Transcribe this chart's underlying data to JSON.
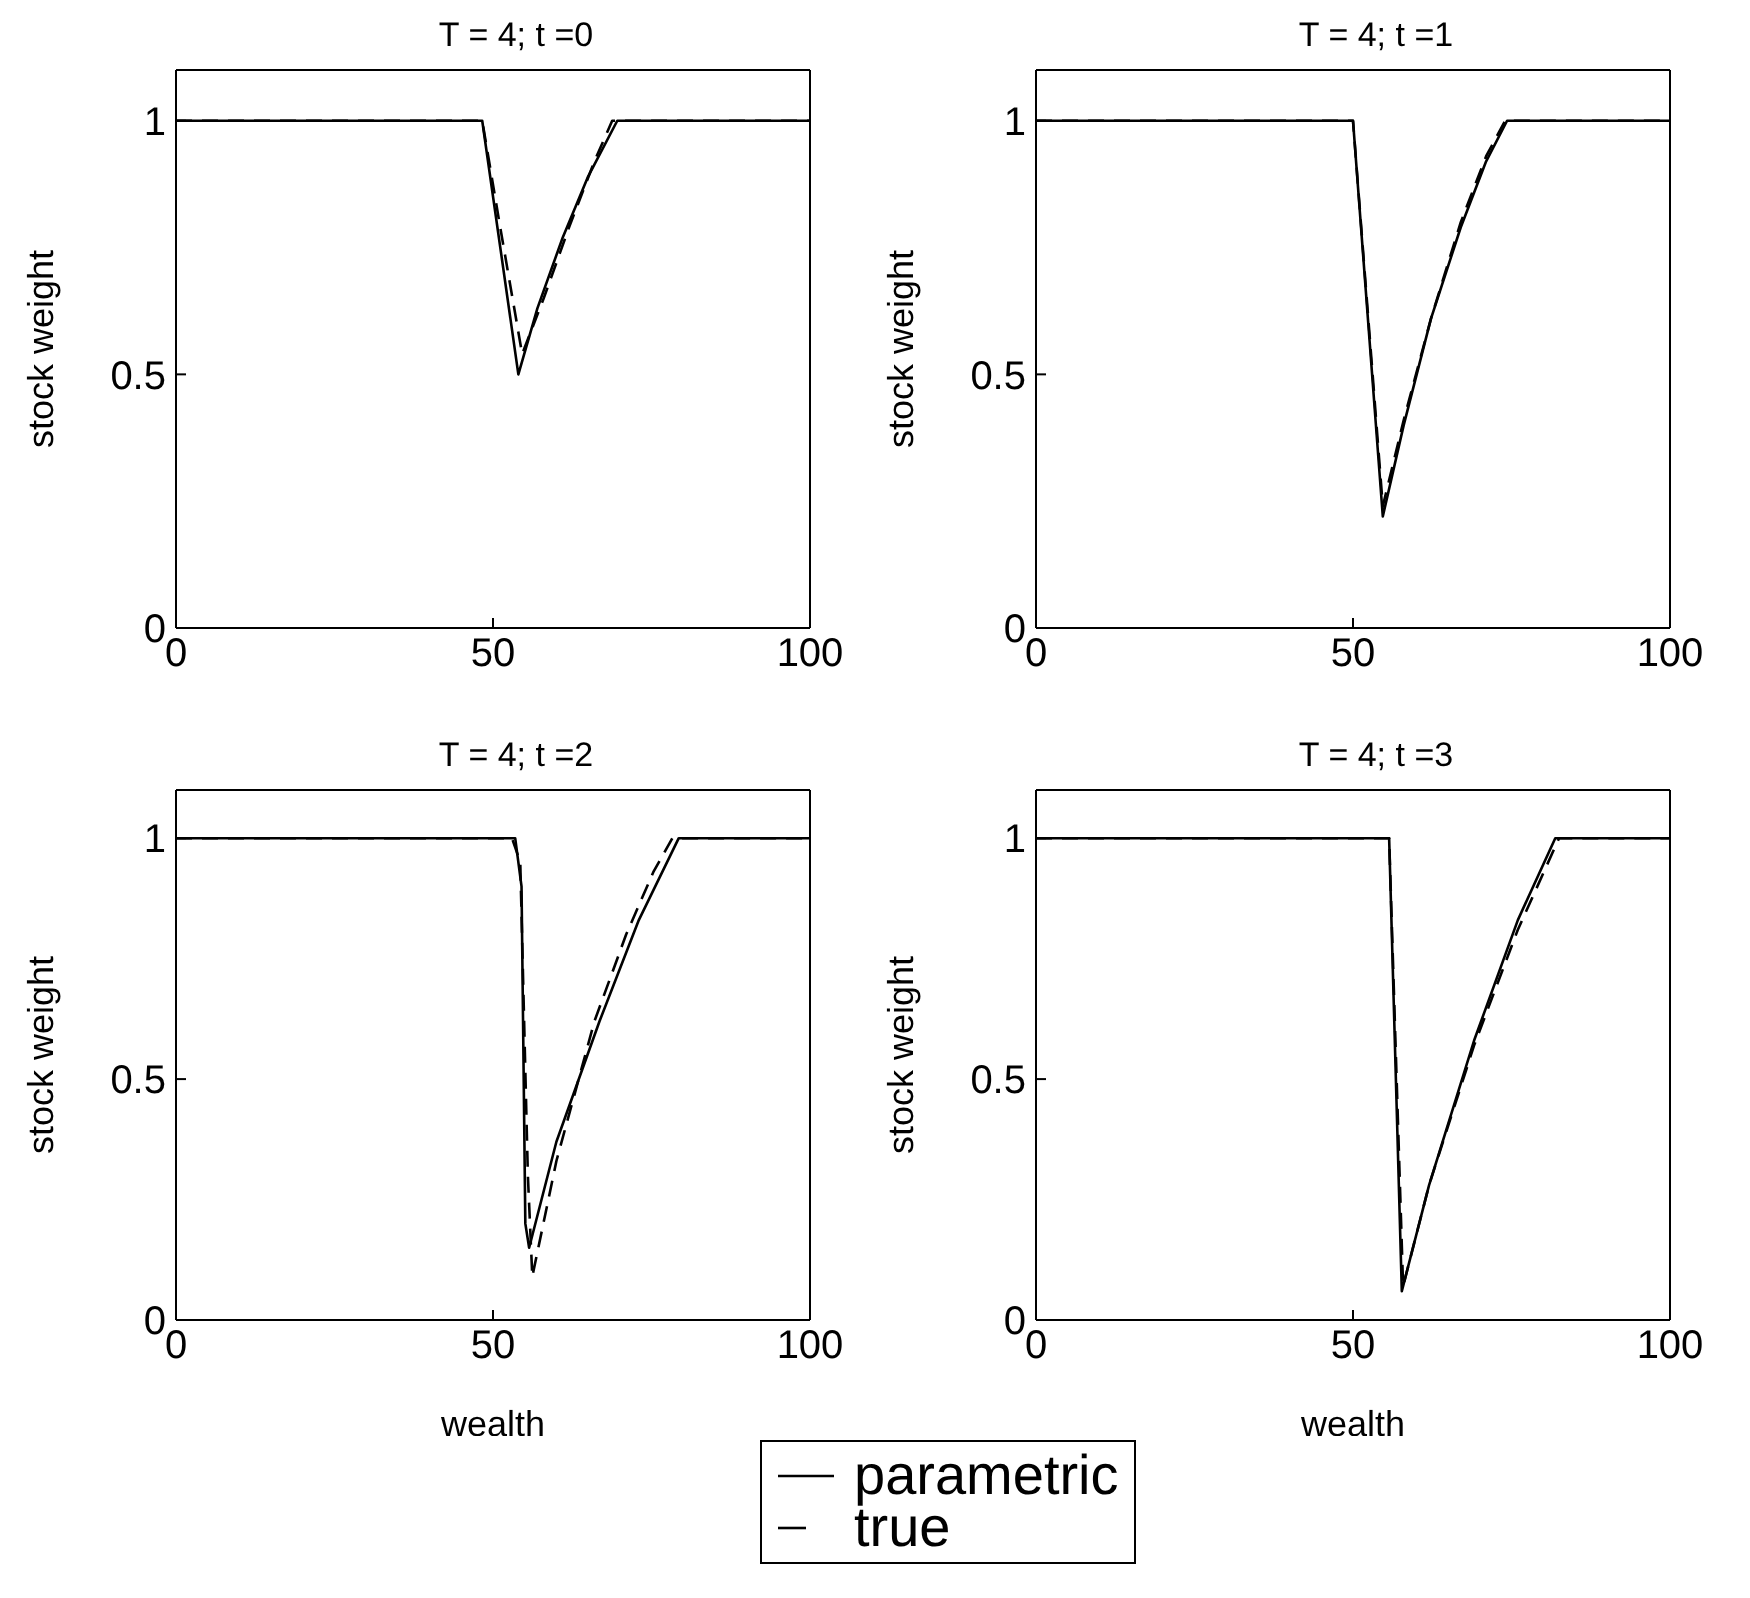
{
  "chart_data": [
    {
      "type": "line",
      "title": "T = 4; t =0",
      "ylabel": "stock weight",
      "legend": "bottom",
      "xlim": [
        0,
        100
      ],
      "xticks": [
        0,
        50,
        100
      ],
      "ylim": [
        0,
        1.1
      ],
      "yticks": [
        0,
        0.5,
        1
      ],
      "series": [
        {
          "name": "parametric",
          "color": "#000000",
          "line_style": "solid",
          "x": [
            0,
            48.3,
            54,
            57,
            61,
            65,
            69.6,
            100
          ],
          "values": [
            1,
            1,
            0.5,
            0.63,
            0.77,
            0.89,
            1,
            1
          ]
        },
        {
          "name": "true",
          "color": "#000000",
          "line_style": "dashed",
          "x": [
            0,
            48.3,
            51,
            54.6,
            58,
            62,
            66,
            68.8,
            100
          ],
          "values": [
            1,
            1,
            0.8,
            0.54,
            0.65,
            0.79,
            0.92,
            1,
            1
          ]
        }
      ]
    },
    {
      "type": "line",
      "title": "T = 4; t =1",
      "ylabel": "stock weight",
      "xlim": [
        0,
        100
      ],
      "xticks": [
        0,
        50,
        100
      ],
      "ylim": [
        0,
        1.1
      ],
      "yticks": [
        0,
        0.5,
        1
      ],
      "series": [
        {
          "color": "#000000",
          "line_style": "solid",
          "x": [
            0,
            50,
            54.7,
            58,
            62.3,
            67,
            71,
            74.3,
            100
          ],
          "values": [
            1,
            1,
            0.22,
            0.4,
            0.61,
            0.79,
            0.92,
            1,
            1
          ]
        },
        {
          "color": "#000000",
          "line_style": "dashed",
          "x": [
            0,
            50,
            54.7,
            58,
            62.3,
            67,
            71,
            74,
            100
          ],
          "values": [
            1,
            1,
            0.24,
            0.41,
            0.61,
            0.8,
            0.93,
            1,
            1
          ]
        }
      ]
    },
    {
      "type": "line",
      "title": "T = 4; t =2",
      "xlabel": "wealth",
      "ylabel": "stock weight",
      "xlim": [
        0,
        100
      ],
      "xticks": [
        0,
        50,
        100
      ],
      "ylim": [
        0,
        1.1
      ],
      "yticks": [
        0,
        0.5,
        1
      ],
      "series": [
        {
          "color": "#000000",
          "line_style": "solid",
          "x": [
            0,
            53.5,
            54.5,
            55.1,
            55.7,
            60,
            66.8,
            73,
            79.3,
            100
          ],
          "values": [
            1,
            1,
            0.9,
            0.2,
            0.15,
            0.37,
            0.62,
            0.83,
            1,
            1
          ]
        },
        {
          "color": "#000000",
          "line_style": "dashed",
          "x": [
            0,
            53,
            54.3,
            55.5,
            56.2,
            60,
            66,
            71,
            75.3,
            78.3,
            100
          ],
          "values": [
            1,
            1,
            0.95,
            0.3,
            0.09,
            0.33,
            0.62,
            0.8,
            0.93,
            1,
            1
          ]
        }
      ]
    },
    {
      "type": "line",
      "title": "T = 4; t =3",
      "xlabel": "wealth",
      "ylabel": "stock weight",
      "xlim": [
        0,
        100
      ],
      "xticks": [
        0,
        50,
        100
      ],
      "ylim": [
        0,
        1.1
      ],
      "yticks": [
        0,
        0.5,
        1
      ],
      "series": [
        {
          "color": "#000000",
          "line_style": "solid",
          "x": [
            0,
            55.7,
            57.7,
            62,
            69.1,
            76,
            81.9,
            100
          ],
          "values": [
            1,
            1,
            0.06,
            0.28,
            0.58,
            0.83,
            1,
            1
          ]
        },
        {
          "color": "#000000",
          "line_style": "dashed",
          "x": [
            0,
            55.7,
            57.9,
            62,
            69.1,
            76,
            82.5,
            100
          ],
          "values": [
            1,
            1,
            0.07,
            0.28,
            0.57,
            0.81,
            1,
            1
          ]
        }
      ]
    }
  ]
}
